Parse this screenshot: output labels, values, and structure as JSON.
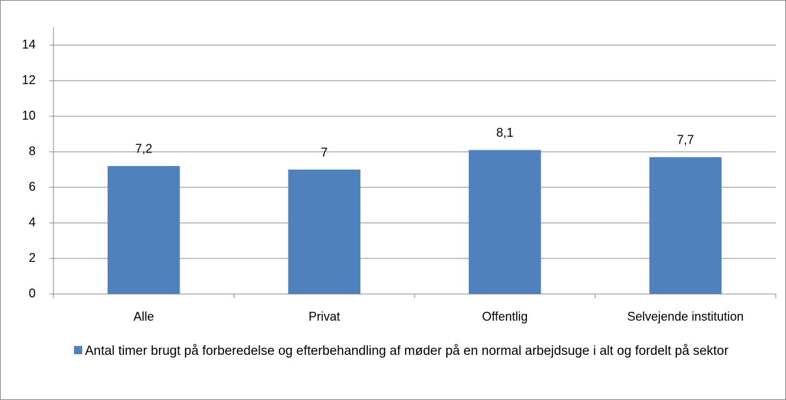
{
  "chart_data": {
    "type": "bar",
    "categories": [
      "Alle",
      "Privat",
      "Offentlig",
      "Selvejende institution"
    ],
    "series": [
      {
        "name": "Antal timer brugt på forberedelse og efterbehandling af møder på en normal arbejdsuge i alt og fordelt på sektor",
        "color": "#4f81bd",
        "values": [
          7.2,
          7,
          8.1,
          7.7
        ],
        "value_labels": [
          "7,2",
          "7",
          "8,1",
          "7,7"
        ]
      }
    ],
    "ylim": [
      0,
      15
    ],
    "yticks": [
      0,
      2,
      4,
      6,
      8,
      10,
      12,
      14
    ],
    "grid": true,
    "legend": "bottom"
  }
}
